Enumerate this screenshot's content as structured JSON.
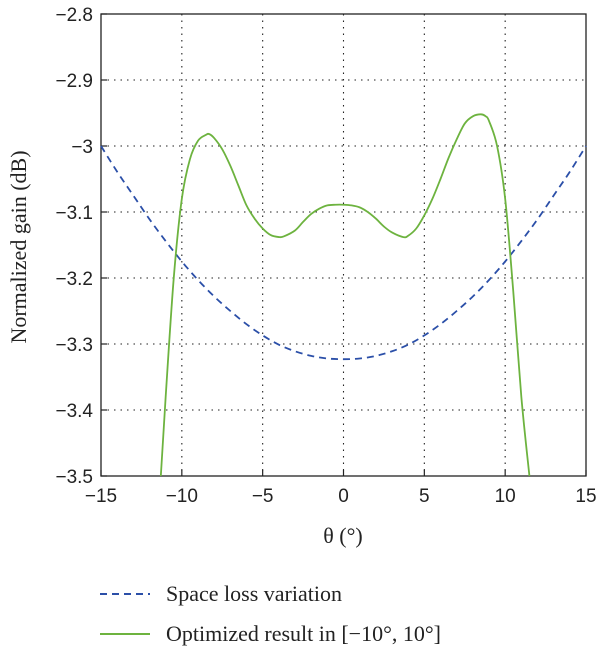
{
  "chart_data": {
    "type": "line",
    "title": "",
    "xlabel": "θ (°)",
    "ylabel": "Normalized gain (dB)",
    "xlim": [
      -15,
      15
    ],
    "ylim": [
      -3.5,
      -2.8
    ],
    "xticks": [
      -15,
      -10,
      -5,
      0,
      5,
      10,
      15
    ],
    "xtick_labels": [
      "−15",
      "−10",
      "−5",
      "0",
      "5",
      "10",
      "15"
    ],
    "yticks": [
      -2.8,
      -2.9,
      -3,
      -3.1,
      -3.2,
      -3.3,
      -3.4,
      -3.5
    ],
    "ytick_labels": [
      "−2.8",
      "−2.9",
      "−3",
      "−3.1",
      "−3.2",
      "−3.3",
      "−3.4",
      "−3.5"
    ],
    "grid": true,
    "legend_position": "below",
    "series": [
      {
        "name": "Space loss variation",
        "style": "dashed",
        "color": "#2b4fa8",
        "x": [
          -15,
          -14,
          -13,
          -12,
          -11,
          -10,
          -9,
          -8,
          -7,
          -6,
          -5,
          -4,
          -3,
          -2,
          -1,
          0,
          1,
          2,
          3,
          4,
          5,
          6,
          7,
          8,
          9,
          10,
          11,
          12,
          13,
          14,
          15
        ],
        "y": [
          -3.0,
          -3.039,
          -3.075,
          -3.111,
          -3.144,
          -3.175,
          -3.203,
          -3.228,
          -3.25,
          -3.27,
          -3.287,
          -3.301,
          -3.311,
          -3.318,
          -3.322,
          -3.323,
          -3.322,
          -3.318,
          -3.311,
          -3.301,
          -3.287,
          -3.27,
          -3.25,
          -3.228,
          -3.203,
          -3.175,
          -3.144,
          -3.111,
          -3.075,
          -3.039,
          -3.0
        ]
      },
      {
        "name": "Optimized result in [−10°, 10°]",
        "style": "solid",
        "color": "#6db33f",
        "x": [
          -11.3,
          -11.0,
          -10.5,
          -10.0,
          -9.5,
          -9.0,
          -8.5,
          -8.3,
          -8.0,
          -7.5,
          -7.0,
          -6.5,
          -6.0,
          -5.5,
          -5.0,
          -4.5,
          -4.0,
          -3.7,
          -3.0,
          -2.5,
          -2.0,
          -1.5,
          -1.0,
          -0.5,
          0,
          0.5,
          1.0,
          1.5,
          2.0,
          2.5,
          3.0,
          3.7,
          4.0,
          4.5,
          5.0,
          5.5,
          6.0,
          6.5,
          7.0,
          7.5,
          8.0,
          8.5,
          8.8,
          9.0,
          9.5,
          10.0,
          10.5,
          11.0,
          11.5
        ],
        "y": [
          -3.5,
          -3.38,
          -3.2,
          -3.08,
          -3.02,
          -2.992,
          -2.983,
          -2.982,
          -2.988,
          -3.005,
          -3.03,
          -3.06,
          -3.09,
          -3.11,
          -3.125,
          -3.135,
          -3.138,
          -3.137,
          -3.128,
          -3.115,
          -3.103,
          -3.095,
          -3.09,
          -3.089,
          -3.089,
          -3.09,
          -3.093,
          -3.1,
          -3.11,
          -3.122,
          -3.131,
          -3.138,
          -3.136,
          -3.125,
          -3.105,
          -3.08,
          -3.05,
          -3.018,
          -2.99,
          -2.966,
          -2.955,
          -2.952,
          -2.955,
          -2.962,
          -3.0,
          -3.08,
          -3.22,
          -3.38,
          -3.5
        ]
      }
    ]
  }
}
